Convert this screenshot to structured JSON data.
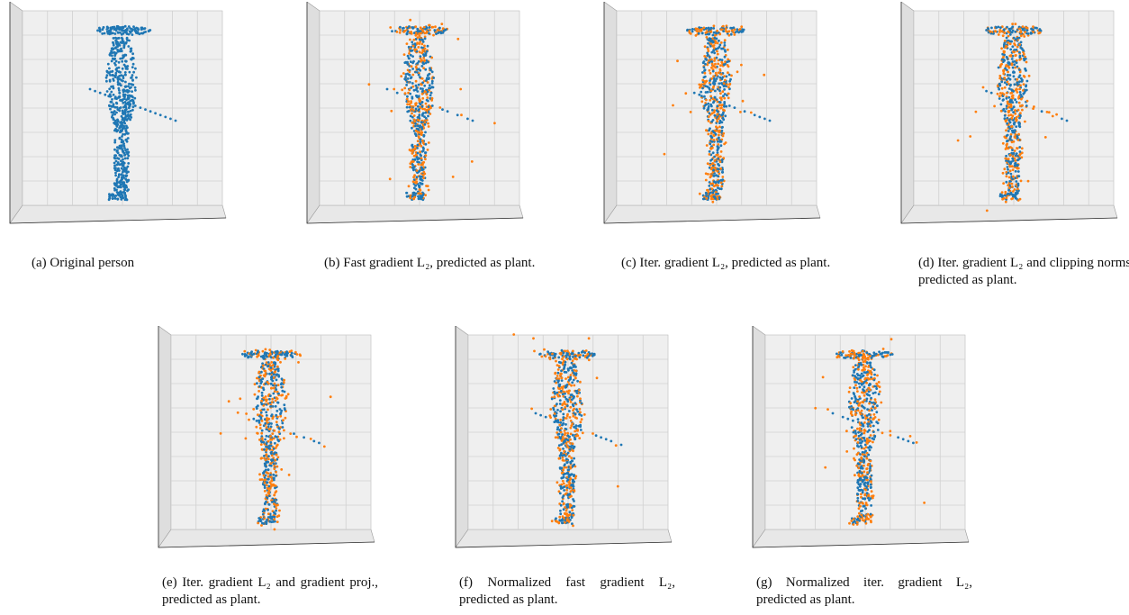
{
  "panels": [
    {
      "label": "(a)",
      "text": "Original person"
    },
    {
      "label": "(b)",
      "text": "Fast gradient L₂, predicted as plant."
    },
    {
      "label": "(c)",
      "text": "Iter. gradient L₂, predicted as plant."
    },
    {
      "label": "(d)",
      "text": "Iter. gradient L₂ and clipping norms, predicted as plant."
    },
    {
      "label": "(e)",
      "text": "Iter. gradient L₂ and gradient proj., predicted as plant."
    },
    {
      "label": "(f)",
      "text": "Normalized fast gradient L₂, predicted as plant."
    },
    {
      "label": "(g)",
      "text": "Normalized iter. gradient L₂, predicted as plant."
    }
  ]
}
